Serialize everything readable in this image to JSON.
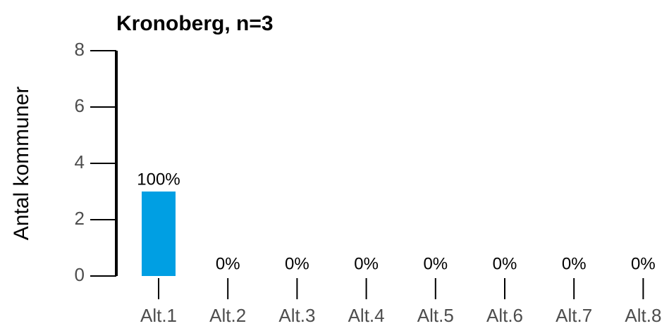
{
  "chart_data": {
    "type": "bar",
    "title": "Kronoberg, n=3",
    "y_label": "Antal kommuner",
    "categories": [
      "Alt.1",
      "Alt.2",
      "Alt.3",
      "Alt.4",
      "Alt.5",
      "Alt.6",
      "Alt.7",
      "Alt.8"
    ],
    "values": [
      3,
      0,
      0,
      0,
      0,
      0,
      0,
      0
    ],
    "value_labels": [
      "100%",
      "0%",
      "0%",
      "0%",
      "0%",
      "0%",
      "0%",
      "0%"
    ],
    "color": "#009fe3",
    "ylim": [
      0,
      8
    ],
    "yticks": [
      0,
      2,
      4,
      6,
      8
    ],
    "grid": false
  }
}
